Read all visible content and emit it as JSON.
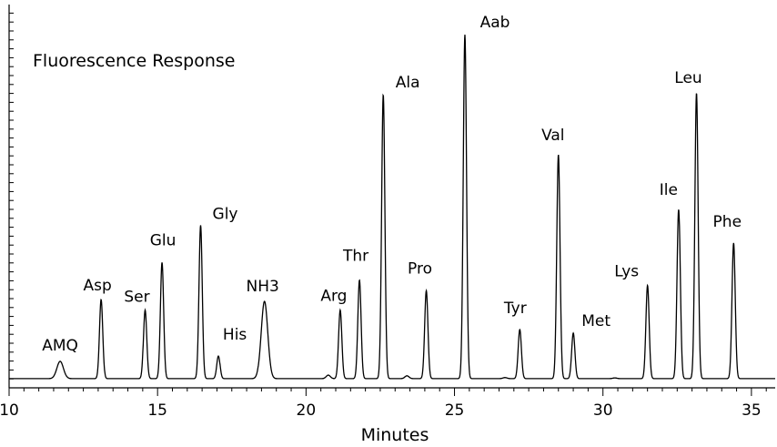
{
  "chart_data": {
    "type": "line",
    "title": "Fluorescence Response",
    "xlabel": "Minutes",
    "ylabel": "",
    "xlim": [
      10,
      35.8
    ],
    "ylim": [
      0,
      100
    ],
    "x_ticks": [
      10,
      15,
      20,
      25,
      30,
      35
    ],
    "x_tick_labels": [
      "10",
      "15",
      "20",
      "25",
      "30",
      "35"
    ],
    "grid": false,
    "legend": "none",
    "line_color": "#000000",
    "baseline": 2.6,
    "peaks": [
      {
        "label": "AMQ",
        "x": 11.72,
        "y": 7.5
      },
      {
        "label": "Asp",
        "x": 13.1,
        "y": 25
      },
      {
        "label": "Ser",
        "x": 14.58,
        "y": 22
      },
      {
        "label": "Glu",
        "x": 15.15,
        "y": 35.5
      },
      {
        "label": "Gly",
        "x": 16.45,
        "y": 46
      },
      {
        "label": "His",
        "x": 17.05,
        "y": 9
      },
      {
        "label": "NH3",
        "x": 18.6,
        "y": 24.5
      },
      {
        "label": "Arg",
        "x": 21.15,
        "y": 22
      },
      {
        "label": "Thr",
        "x": 21.8,
        "y": 30.5
      },
      {
        "label": "Ala",
        "x": 22.6,
        "y": 83
      },
      {
        "label": "Pro",
        "x": 24.05,
        "y": 27.5
      },
      {
        "label": "Aab",
        "x": 25.35,
        "y": 100
      },
      {
        "label": "Tyr",
        "x": 27.2,
        "y": 16.5
      },
      {
        "label": "Val",
        "x": 28.5,
        "y": 66
      },
      {
        "label": "Met",
        "x": 29.0,
        "y": 15.5
      },
      {
        "label": "Lys",
        "x": 31.5,
        "y": 29
      },
      {
        "label": "Ile",
        "x": 32.55,
        "y": 50.5
      },
      {
        "label": "Leu",
        "x": 33.15,
        "y": 83.5
      },
      {
        "label": "Phe",
        "x": 34.4,
        "y": 41
      }
    ],
    "minor_peaks": [
      {
        "x": 20.75,
        "y": 3.6
      },
      {
        "x": 23.4,
        "y": 3.4
      },
      {
        "x": 26.7,
        "y": 2.9
      },
      {
        "x": 30.4,
        "y": 2.8
      }
    ]
  }
}
